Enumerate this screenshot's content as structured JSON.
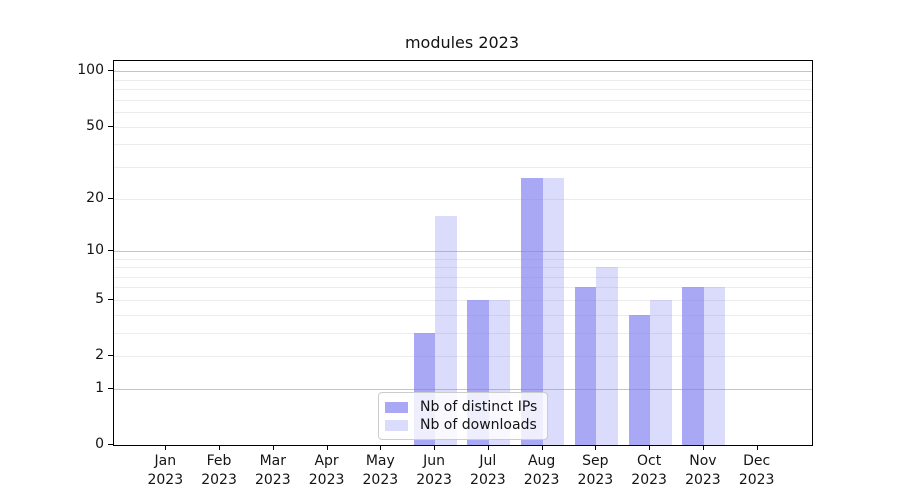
{
  "title": "modules 2023",
  "colors": {
    "bar_base": "#7b7bf0",
    "bar_ips_alpha": 0.66,
    "bar_downloads_alpha": 0.27,
    "bar_ips_blended": "#a8a8f5",
    "bar_downloads_blended": "#dbdbfa",
    "grid_major": "#c5c5c5",
    "grid_minor": "#ececec",
    "axis": "#000000",
    "text": "#141414",
    "legend_border": "#cccccc"
  },
  "legend": {
    "items": [
      {
        "label": "Nb of distinct IPs",
        "series": "ips"
      },
      {
        "label": "Nb of downloads",
        "series": "downloads"
      }
    ],
    "position": "lower-center-inside"
  },
  "chart_data": {
    "type": "bar",
    "title": "modules 2023",
    "categories": [
      "Jan 2023",
      "Feb 2023",
      "Mar 2023",
      "Apr 2023",
      "May 2023",
      "Jun 2023",
      "Jul 2023",
      "Aug 2023",
      "Sep 2023",
      "Oct 2023",
      "Nov 2023",
      "Dec 2023"
    ],
    "series": [
      {
        "name": "Nb of distinct IPs",
        "values": [
          0,
          0,
          0,
          0,
          0,
          3,
          5,
          26,
          6,
          4,
          6,
          0
        ]
      },
      {
        "name": "Nb of downloads",
        "values": [
          0,
          0,
          0,
          0,
          0,
          16,
          5,
          26,
          8,
          5,
          6,
          0
        ]
      }
    ],
    "xlabel": "",
    "ylabel": "",
    "yscale": "log10(1+x)",
    "ylim": [
      0,
      114
    ],
    "y_tick_labels": [
      0,
      1,
      2,
      5,
      10,
      20,
      50,
      100
    ],
    "grid_values_major": [
      1,
      10,
      100
    ],
    "grid_values_minor": [
      2,
      3,
      4,
      5,
      6,
      7,
      8,
      9,
      20,
      30,
      40,
      50,
      60,
      70,
      80,
      90
    ],
    "grid": true,
    "legend_position": "lower center"
  }
}
